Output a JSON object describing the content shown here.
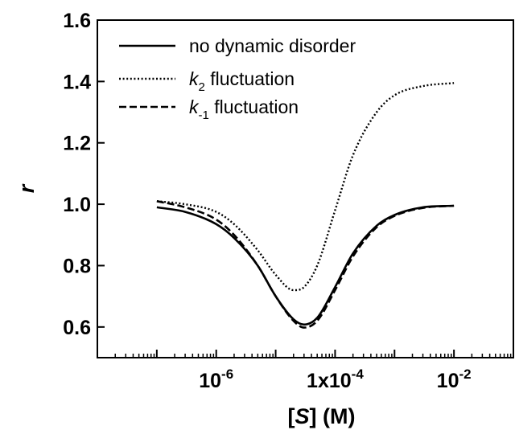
{
  "chart_data": {
    "type": "line",
    "xscale": "log",
    "xlim": [
      1e-08,
      0.1
    ],
    "ylim": [
      0.5,
      1.6
    ],
    "yticks": [
      0.6,
      0.8,
      1.0,
      1.2,
      1.4,
      1.6
    ],
    "ytick_labels": [
      "0.6",
      "0.8",
      "1.0",
      "1.2",
      "1.4",
      "1.6"
    ],
    "xticks": [
      {
        "value": 1e-06,
        "label_base": "10",
        "label_exp": "-6"
      },
      {
        "value": 0.0001,
        "label_base": "1x10",
        "label_exp": "-4"
      },
      {
        "value": 0.01,
        "label_base": "10",
        "label_exp": "-2"
      }
    ],
    "xlabel": {
      "pre": "[",
      "italic": "S",
      "post": "] (M)"
    },
    "ylabel": "r",
    "legend": [
      {
        "symbol": "",
        "sub": "",
        "text": "no dynamic disorder"
      },
      {
        "symbol": "k",
        "sub": "2",
        "text": " fluctuation"
      },
      {
        "symbol": "k",
        "sub": "-1",
        "text": " fluctuation"
      }
    ],
    "legend_position": "top-left",
    "series": [
      {
        "name": "no dynamic disorder",
        "style": "solid",
        "x": [
          1e-07,
          3e-07,
          1e-06,
          2e-06,
          5e-06,
          1e-05,
          2e-05,
          3e-05,
          5e-05,
          0.0001,
          0.0002,
          0.0005,
          0.001,
          0.003,
          0.01
        ],
        "y": [
          0.99,
          0.975,
          0.935,
          0.89,
          0.8,
          0.7,
          0.625,
          0.608,
          0.63,
          0.73,
          0.84,
          0.93,
          0.965,
          0.99,
          0.995
        ]
      },
      {
        "name": "k2 fluctuation",
        "style": "dotted",
        "x": [
          1e-07,
          3e-07,
          1e-06,
          2e-06,
          5e-06,
          1e-05,
          2e-05,
          3e-05,
          5e-05,
          0.0001,
          0.0002,
          0.0005,
          0.001,
          0.003,
          0.01
        ],
        "y": [
          1.01,
          1.0,
          0.975,
          0.935,
          0.85,
          0.77,
          0.72,
          0.73,
          0.8,
          0.98,
          1.16,
          1.3,
          1.355,
          1.385,
          1.395
        ]
      },
      {
        "name": "k-1 fluctuation",
        "style": "dashed",
        "x": [
          1e-07,
          3e-07,
          1e-06,
          2e-06,
          5e-06,
          1e-05,
          2e-05,
          3e-05,
          5e-05,
          0.0001,
          0.0002,
          0.0005,
          0.001,
          0.003,
          0.01
        ],
        "y": [
          1.01,
          0.99,
          0.95,
          0.9,
          0.8,
          0.7,
          0.62,
          0.598,
          0.62,
          0.72,
          0.83,
          0.925,
          0.962,
          0.988,
          0.995
        ]
      }
    ]
  }
}
